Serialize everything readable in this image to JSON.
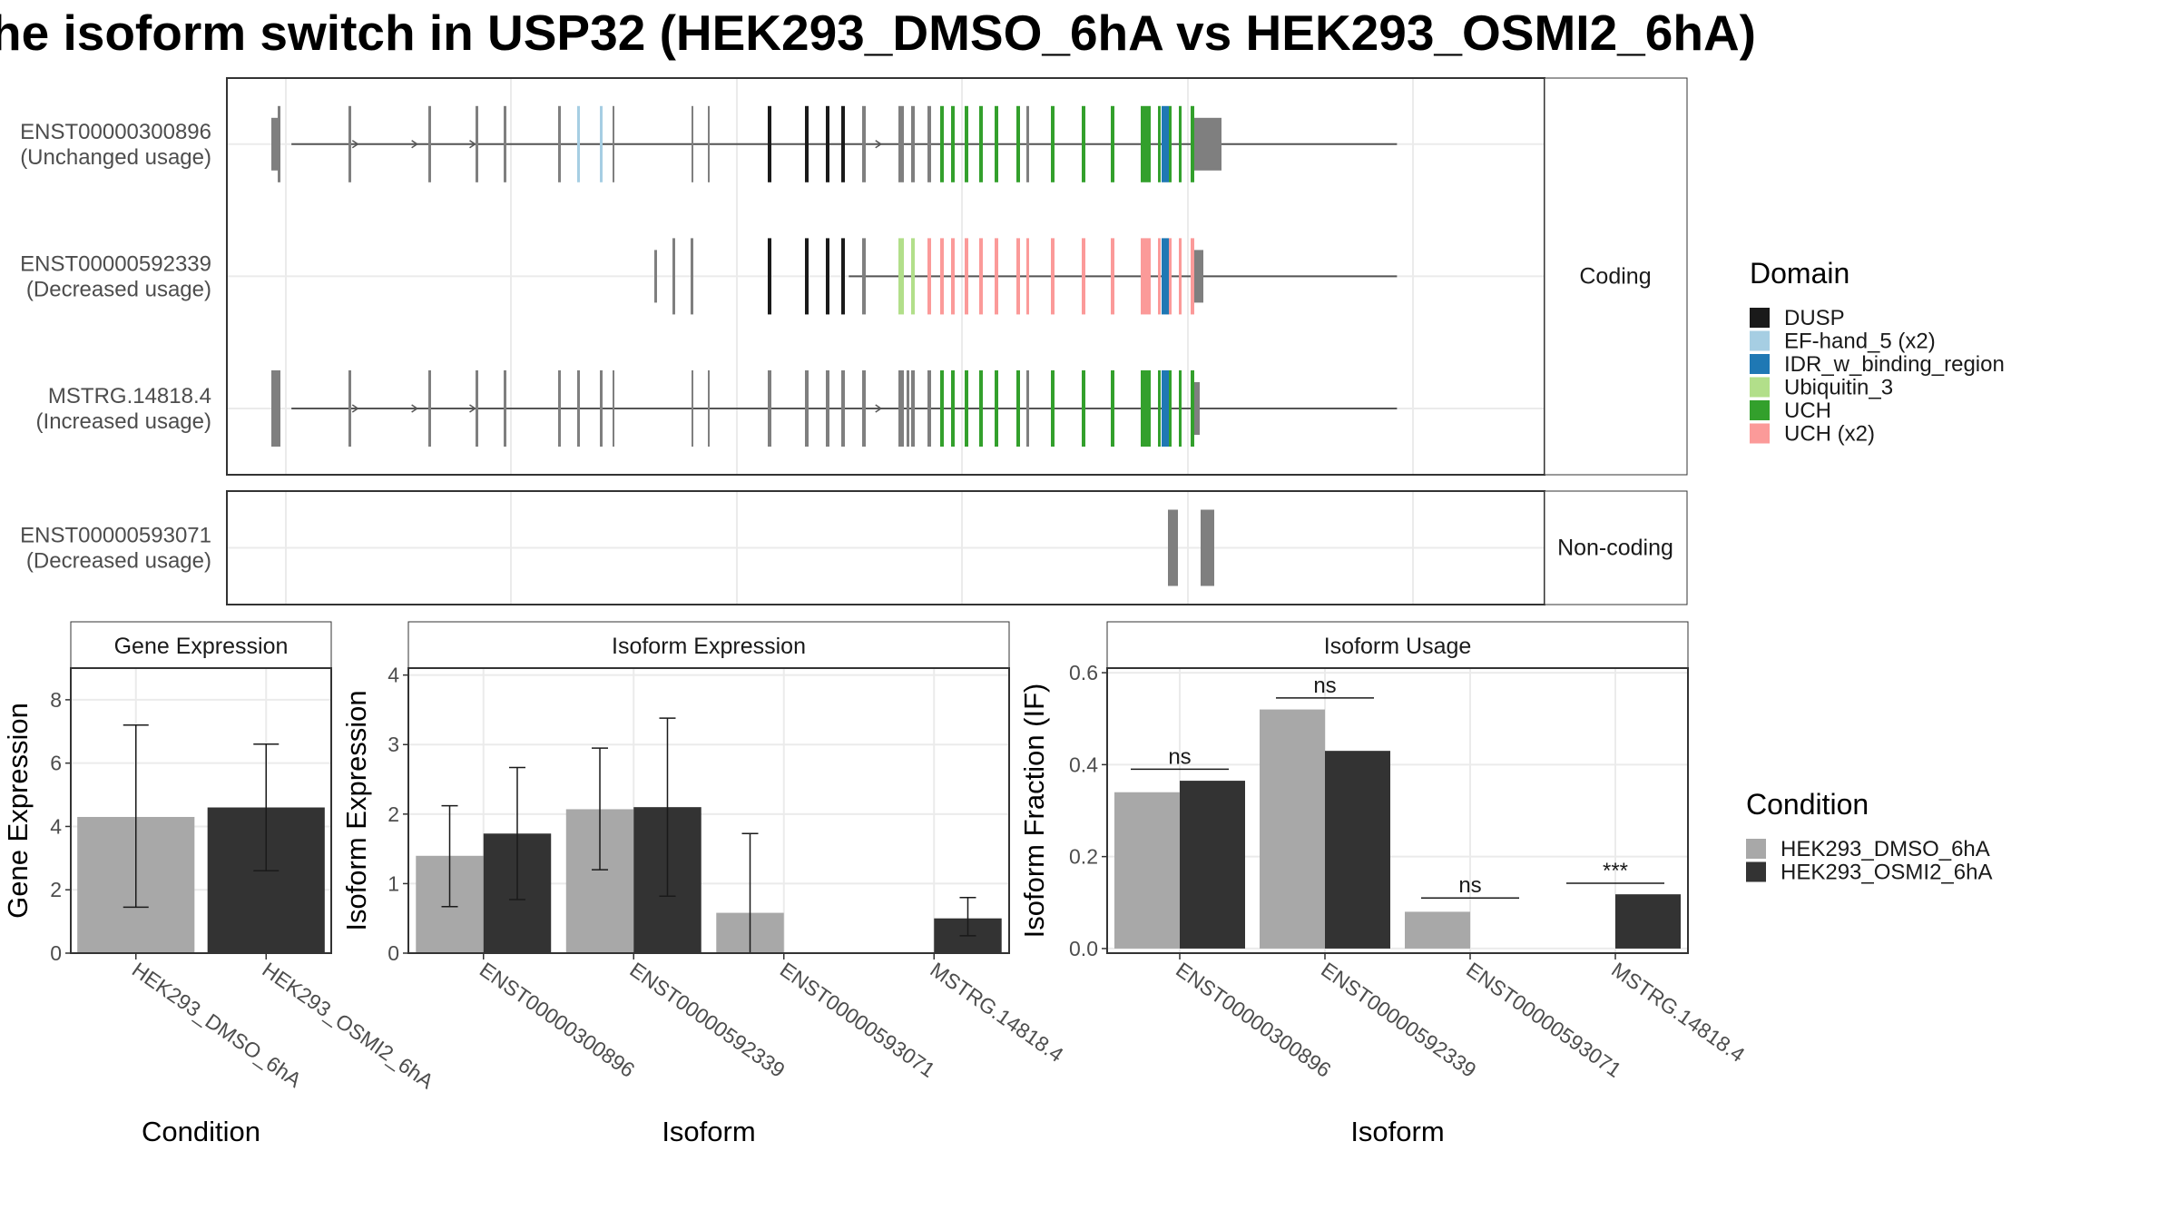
{
  "title": "he isoform switch in USP32 (HEK293_DMSO_6hA vs HEK293_OSMI2_6hA)",
  "colors": {
    "exon_none": "#7f7f7f",
    "condition_1": "#a8a8a8",
    "condition_2": "#333333",
    "panel_strip_bg": "#ffffff",
    "grid": "#ebebeb"
  },
  "structure": {
    "xlim": [
      0,
      1000
    ],
    "facets": [
      "Coding",
      "Non-coding"
    ],
    "coding_transcripts": [
      {
        "id": "ENST00000300896",
        "usage": "(Unchanged usage)",
        "start": 49,
        "end": 888,
        "arrows": [
          98,
          143,
          187,
          495
        ],
        "exons": [
          {
            "s": 49,
            "e": 56,
            "d": "none",
            "h": "utr"
          },
          {
            "s": 56,
            "e": 59,
            "d": "none"
          },
          {
            "s": 134,
            "e": 137,
            "d": "none"
          },
          {
            "s": 222,
            "e": 225,
            "d": "none"
          },
          {
            "s": 274,
            "e": 277,
            "d": "none"
          },
          {
            "s": 305,
            "e": 308,
            "d": "none"
          },
          {
            "s": 365,
            "e": 368,
            "d": "none"
          },
          {
            "s": 386,
            "e": 389,
            "d": "EF-hand_5 (x2)"
          },
          {
            "s": 411,
            "e": 414,
            "d": "EF-hand_5 (x2)"
          },
          {
            "s": 425,
            "e": 427,
            "d": "none"
          },
          {
            "s": 512,
            "e": 514,
            "d": "none"
          },
          {
            "s": 530,
            "e": 532,
            "d": "none"
          },
          {
            "s": 596,
            "e": 600,
            "d": "DUSP"
          },
          {
            "s": 637,
            "e": 641,
            "d": "DUSP"
          },
          {
            "s": 660,
            "e": 664,
            "d": "DUSP"
          },
          {
            "s": 677,
            "e": 681,
            "d": "DUSP"
          },
          {
            "s": 700,
            "e": 704,
            "d": "none"
          },
          {
            "s": 740,
            "e": 746,
            "d": "none"
          },
          {
            "s": 754,
            "e": 758,
            "d": "none"
          },
          {
            "s": 772,
            "e": 776,
            "d": "none"
          },
          {
            "s": 786,
            "e": 790,
            "d": "UCH"
          },
          {
            "s": 798,
            "e": 802,
            "d": "UCH"
          },
          {
            "s": 813,
            "e": 817,
            "d": "UCH"
          },
          {
            "s": 829,
            "e": 833,
            "d": "UCH"
          },
          {
            "s": 846,
            "e": 850,
            "d": "UCH"
          },
          {
            "s": 870,
            "e": 874,
            "d": "UCH"
          },
          {
            "s": 881,
            "e": 884,
            "d": "none"
          },
          {
            "s": 908,
            "e": 912,
            "d": "UCH"
          },
          {
            "s": 942,
            "e": 946,
            "d": "UCH"
          },
          {
            "s": 974,
            "e": 978,
            "d": "UCH"
          },
          {
            "s": 1007,
            "e": 1018,
            "d": "UCH"
          },
          {
            "s": 1026,
            "e": 1029,
            "d": "UCH"
          },
          {
            "s": 1030,
            "e": 1038,
            "d": "IDR_w_binding_region"
          },
          {
            "s": 1038,
            "e": 1041,
            "d": "UCH"
          },
          {
            "s": 1049,
            "e": 1052,
            "d": "UCH"
          },
          {
            "s": 1062,
            "e": 1066,
            "d": "UCH"
          },
          {
            "s": 1066,
            "e": 1096,
            "d": "none",
            "h": "utr"
          }
        ]
      },
      {
        "id": "ENST00000592339",
        "usage": "(Decreased usage)",
        "start": 472,
        "end": 888,
        "arrows": [],
        "exons": [
          {
            "s": 471,
            "e": 474,
            "d": "none",
            "h": "utr"
          },
          {
            "s": 491,
            "e": 494,
            "d": "none"
          },
          {
            "s": 511,
            "e": 514,
            "d": "none"
          },
          {
            "s": 596,
            "e": 600,
            "d": "DUSP"
          },
          {
            "s": 637,
            "e": 641,
            "d": "DUSP"
          },
          {
            "s": 660,
            "e": 664,
            "d": "DUSP"
          },
          {
            "s": 677,
            "e": 681,
            "d": "DUSP"
          },
          {
            "s": 700,
            "e": 704,
            "d": "none"
          },
          {
            "s": 740,
            "e": 746,
            "d": "Ubiquitin_3"
          },
          {
            "s": 754,
            "e": 758,
            "d": "Ubiquitin_3"
          },
          {
            "s": 772,
            "e": 776,
            "d": "UCH (x2)"
          },
          {
            "s": 786,
            "e": 790,
            "d": "UCH (x2)"
          },
          {
            "s": 798,
            "e": 802,
            "d": "UCH (x2)"
          },
          {
            "s": 813,
            "e": 817,
            "d": "UCH (x2)"
          },
          {
            "s": 829,
            "e": 833,
            "d": "UCH (x2)"
          },
          {
            "s": 846,
            "e": 850,
            "d": "UCH (x2)"
          },
          {
            "s": 870,
            "e": 874,
            "d": "UCH (x2)"
          },
          {
            "s": 881,
            "e": 884,
            "d": "UCH (x2)"
          },
          {
            "s": 908,
            "e": 912,
            "d": "UCH (x2)"
          },
          {
            "s": 942,
            "e": 946,
            "d": "UCH (x2)"
          },
          {
            "s": 974,
            "e": 978,
            "d": "UCH (x2)"
          },
          {
            "s": 1007,
            "e": 1018,
            "d": "UCH (x2)"
          },
          {
            "s": 1026,
            "e": 1029,
            "d": "UCH (x2)"
          },
          {
            "s": 1030,
            "e": 1038,
            "d": "IDR_w_binding_region"
          },
          {
            "s": 1038,
            "e": 1041,
            "d": "UCH (x2)"
          },
          {
            "s": 1049,
            "e": 1052,
            "d": "UCH (x2)"
          },
          {
            "s": 1062,
            "e": 1066,
            "d": "UCH (x2)"
          },
          {
            "s": 1066,
            "e": 1076,
            "d": "none",
            "h": "utr"
          }
        ]
      },
      {
        "id": "MSTRG.14818.4",
        "usage": "(Increased usage)",
        "start": 49,
        "end": 888,
        "arrows": [
          98,
          143,
          187,
          495
        ],
        "exons": [
          {
            "s": 49,
            "e": 59,
            "d": "none"
          },
          {
            "s": 134,
            "e": 137,
            "d": "none"
          },
          {
            "s": 222,
            "e": 225,
            "d": "none"
          },
          {
            "s": 274,
            "e": 277,
            "d": "none"
          },
          {
            "s": 305,
            "e": 308,
            "d": "none"
          },
          {
            "s": 365,
            "e": 368,
            "d": "none"
          },
          {
            "s": 386,
            "e": 389,
            "d": "none"
          },
          {
            "s": 411,
            "e": 414,
            "d": "none"
          },
          {
            "s": 425,
            "e": 427,
            "d": "none"
          },
          {
            "s": 512,
            "e": 514,
            "d": "none"
          },
          {
            "s": 530,
            "e": 532,
            "d": "none"
          },
          {
            "s": 596,
            "e": 600,
            "d": "none"
          },
          {
            "s": 637,
            "e": 641,
            "d": "none"
          },
          {
            "s": 660,
            "e": 664,
            "d": "none"
          },
          {
            "s": 677,
            "e": 681,
            "d": "none"
          },
          {
            "s": 700,
            "e": 704,
            "d": "none"
          },
          {
            "s": 740,
            "e": 746,
            "d": "none"
          },
          {
            "s": 749,
            "e": 752,
            "d": "none"
          },
          {
            "s": 754,
            "e": 758,
            "d": "none"
          },
          {
            "s": 772,
            "e": 776,
            "d": "none"
          },
          {
            "s": 786,
            "e": 790,
            "d": "UCH"
          },
          {
            "s": 798,
            "e": 802,
            "d": "UCH"
          },
          {
            "s": 813,
            "e": 817,
            "d": "UCH"
          },
          {
            "s": 829,
            "e": 833,
            "d": "UCH"
          },
          {
            "s": 846,
            "e": 850,
            "d": "UCH"
          },
          {
            "s": 870,
            "e": 874,
            "d": "UCH"
          },
          {
            "s": 881,
            "e": 884,
            "d": "none"
          },
          {
            "s": 908,
            "e": 912,
            "d": "UCH"
          },
          {
            "s": 942,
            "e": 946,
            "d": "UCH"
          },
          {
            "s": 974,
            "e": 978,
            "d": "UCH"
          },
          {
            "s": 1007,
            "e": 1018,
            "d": "UCH"
          },
          {
            "s": 1026,
            "e": 1029,
            "d": "UCH"
          },
          {
            "s": 1030,
            "e": 1038,
            "d": "IDR_w_binding_region"
          },
          {
            "s": 1038,
            "e": 1041,
            "d": "UCH"
          },
          {
            "s": 1049,
            "e": 1052,
            "d": "UCH"
          },
          {
            "s": 1062,
            "e": 1066,
            "d": "UCH"
          },
          {
            "s": 1066,
            "e": 1072,
            "d": "none",
            "h": "utr"
          }
        ]
      }
    ],
    "noncoding_transcripts": [
      {
        "id": "ENST00000593071",
        "usage": "(Decreased usage)",
        "start": 1040,
        "end": 1090,
        "arrows": [],
        "exons": [
          {
            "s": 1037,
            "e": 1048,
            "d": "none"
          },
          {
            "s": 1073,
            "e": 1088,
            "d": "none"
          }
        ]
      }
    ]
  },
  "legend_domain": {
    "title": "Domain",
    "items": [
      {
        "label": "DUSP",
        "color": "#1a1a1a"
      },
      {
        "label": "EF-hand_5 (x2)",
        "color": "#a6cee3"
      },
      {
        "label": "IDR_w_binding_region",
        "color": "#1f78b4"
      },
      {
        "label": "Ubiquitin_3",
        "color": "#b2df8a"
      },
      {
        "label": "UCH",
        "color": "#33a02c"
      },
      {
        "label": "UCH (x2)",
        "color": "#fb9a99"
      }
    ]
  },
  "legend_condition": {
    "title": "Condition",
    "items": [
      {
        "label": "HEK293_DMSO_6hA",
        "color": "#a8a8a8"
      },
      {
        "label": "HEK293_OSMI2_6hA",
        "color": "#333333"
      }
    ]
  },
  "chart_data": [
    {
      "type": "bar",
      "title": "Gene Expression",
      "xlabel": "Condition",
      "ylabel": "Gene Expression",
      "ylim": [
        0,
        9
      ],
      "yticks": [
        0,
        2,
        4,
        6,
        8
      ],
      "categories": [
        "HEK293_DMSO_6hA",
        "HEK293_OSMI2_6hA"
      ],
      "values": [
        4.3,
        4.6
      ],
      "error_low": [
        1.45,
        2.6
      ],
      "error_high": [
        7.2,
        6.6
      ]
    },
    {
      "type": "bar",
      "title": "Isoform Expression",
      "xlabel": "Isoform",
      "ylabel": "Isoform Expression",
      "ylim": [
        0,
        4.1
      ],
      "yticks": [
        0,
        1,
        2,
        3,
        4
      ],
      "categories": [
        "ENST00000300896",
        "ENST00000592339",
        "ENST00000593071",
        "MSTRG.14818.4"
      ],
      "series": [
        {
          "name": "HEK293_DMSO_6hA",
          "values": [
            1.4,
            2.07,
            0.58,
            0.0
          ],
          "error_low": [
            0.67,
            1.2,
            0.0,
            null
          ],
          "error_high": [
            2.12,
            2.95,
            1.72,
            null
          ]
        },
        {
          "name": "HEK293_OSMI2_6hA",
          "values": [
            1.72,
            2.1,
            0.0,
            0.5
          ],
          "error_low": [
            0.77,
            0.82,
            null,
            0.25
          ],
          "error_high": [
            2.67,
            3.38,
            null,
            0.8
          ]
        }
      ]
    },
    {
      "type": "bar",
      "title": "Isoform Usage",
      "xlabel": "Isoform",
      "ylabel": "Isoform Fraction (IF)",
      "ylim": [
        -0.01,
        0.61
      ],
      "yticks": [
        0.0,
        0.2,
        0.4,
        0.6
      ],
      "tick_labels": [
        "0.0",
        "0.2",
        "0.4",
        "0.6"
      ],
      "categories": [
        "ENST00000300896",
        "ENST00000592339",
        "ENST00000593071",
        "MSTRG.14818.4"
      ],
      "series": [
        {
          "name": "HEK293_DMSO_6hA",
          "values": [
            0.34,
            0.52,
            0.08,
            0.0
          ]
        },
        {
          "name": "HEK293_OSMI2_6hA",
          "values": [
            0.365,
            0.43,
            0.0,
            0.118
          ]
        }
      ],
      "significance": [
        {
          "label": "ns",
          "level": 0.39
        },
        {
          "label": "ns",
          "level": 0.545
        },
        {
          "label": "ns",
          "level": 0.11
        },
        {
          "label": "***",
          "level": 0.142
        }
      ]
    }
  ]
}
